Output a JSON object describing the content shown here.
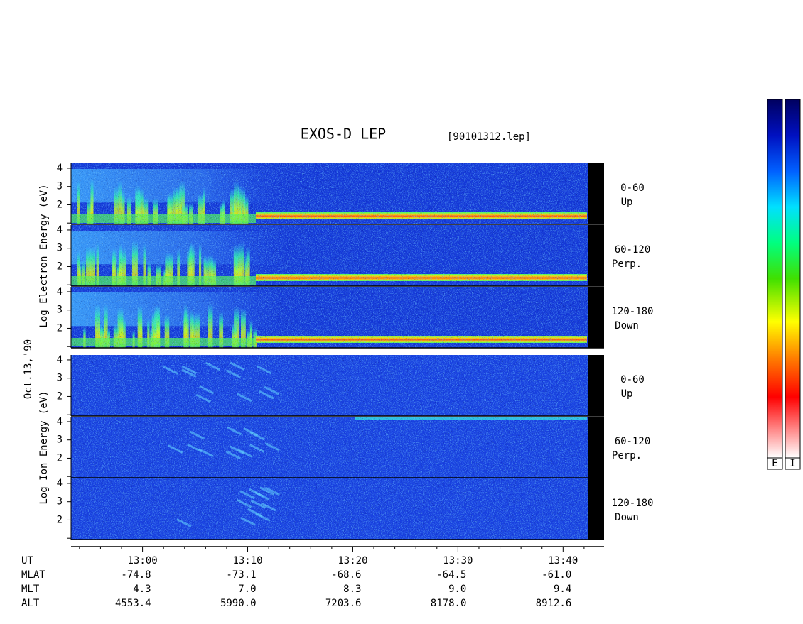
{
  "chart_data": {
    "type": "spectrogram",
    "title": "EXOS-D LEP",
    "subtitle": "[90101312.lep]",
    "date_label": "Oct.13,'90",
    "xlim": [
      773.2,
      823.9
    ],
    "xticks": [
      {
        "value": 780,
        "label": "13:00"
      },
      {
        "value": 790,
        "label": "13:10"
      },
      {
        "value": 800,
        "label": "13:20"
      },
      {
        "value": 810,
        "label": "13:30"
      },
      {
        "value": 820,
        "label": "13:40"
      }
    ],
    "minor_xticks": [
      774,
      776,
      778,
      782,
      784,
      786,
      788,
      792,
      794,
      796,
      798,
      802,
      804,
      806,
      808,
      812,
      814,
      816,
      818,
      822
    ],
    "ylim": [
      0.93,
      4.27
    ],
    "yticks": [
      2,
      3,
      4
    ],
    "minor_yticks": [
      1
    ],
    "groups": [
      {
        "ylabel": "Log Electron Energy (eV)",
        "panels": [
          {
            "range": "0-60",
            "direction": "Up"
          },
          {
            "range": "60-120",
            "direction": "Perp."
          },
          {
            "range": "120-180",
            "direction": "Down"
          }
        ]
      },
      {
        "ylabel": "Log Ion Energy (eV)",
        "panels": [
          {
            "range": "0-60",
            "direction": "Up"
          },
          {
            "range": "60-120",
            "direction": "Perp."
          },
          {
            "range": "120-180",
            "direction": "Down"
          }
        ]
      }
    ],
    "ut_label": "UT",
    "ephemeris": [
      {
        "label": "MLAT",
        "values": [
          "-74.8",
          "-73.1",
          "-68.6",
          "-64.5",
          "-61.0"
        ]
      },
      {
        "label": "MLT",
        "values": [
          "4.3",
          "7.0",
          "8.3",
          "9.0",
          "9.4"
        ]
      },
      {
        "label": "ALT",
        "values": [
          "4553.4",
          "5990.0",
          "7203.6",
          "8178.0",
          "8912.6"
        ]
      }
    ],
    "colorbar_labels": [
      "E",
      "I"
    ]
  }
}
